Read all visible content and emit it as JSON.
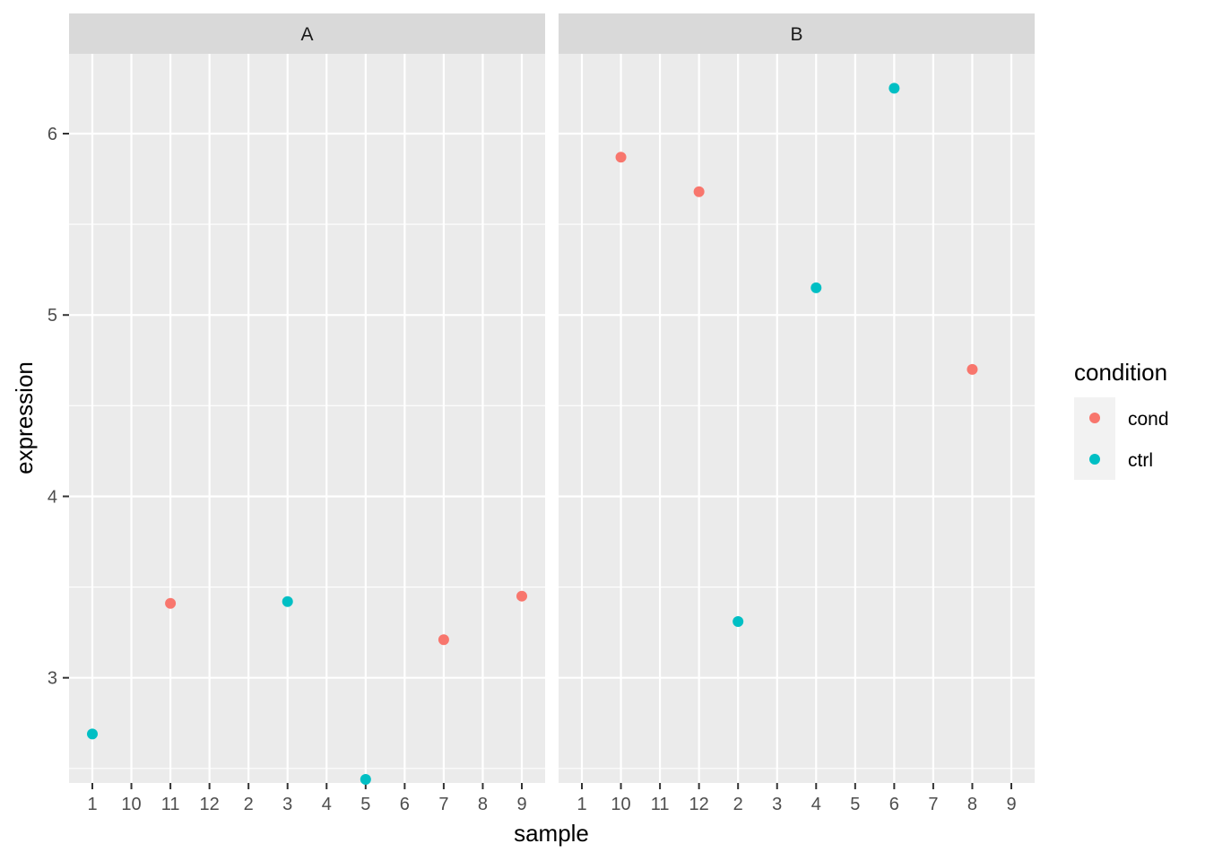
{
  "chart_data": {
    "type": "scatter",
    "xlabel": "sample",
    "ylabel": "expression",
    "categories": [
      "1",
      "10",
      "11",
      "12",
      "2",
      "3",
      "4",
      "5",
      "6",
      "7",
      "8",
      "9"
    ],
    "yticks": [
      3,
      4,
      5,
      6
    ],
    "ylim": [
      2.42,
      6.44
    ],
    "grid": true,
    "facets": [
      {
        "label": "A",
        "points": [
          {
            "sample": "1",
            "expression": 2.69,
            "condition": "ctrl"
          },
          {
            "sample": "11",
            "expression": 3.41,
            "condition": "cond"
          },
          {
            "sample": "3",
            "expression": 3.42,
            "condition": "ctrl"
          },
          {
            "sample": "5",
            "expression": 2.44,
            "condition": "ctrl"
          },
          {
            "sample": "7",
            "expression": 3.21,
            "condition": "cond"
          },
          {
            "sample": "9",
            "expression": 3.45,
            "condition": "cond"
          }
        ]
      },
      {
        "label": "B",
        "points": [
          {
            "sample": "10",
            "expression": 5.87,
            "condition": "cond"
          },
          {
            "sample": "12",
            "expression": 5.68,
            "condition": "cond"
          },
          {
            "sample": "2",
            "expression": 3.31,
            "condition": "ctrl"
          },
          {
            "sample": "4",
            "expression": 5.15,
            "condition": "ctrl"
          },
          {
            "sample": "6",
            "expression": 6.25,
            "condition": "ctrl"
          },
          {
            "sample": "8",
            "expression": 4.7,
            "condition": "cond"
          }
        ]
      }
    ],
    "legend": {
      "title": "condition",
      "placement": "right",
      "entries": [
        {
          "name": "cond",
          "color": "#F8766D"
        },
        {
          "name": "ctrl",
          "color": "#00BFC4"
        }
      ]
    },
    "colors": {
      "panel_bg": "#EBEBEB",
      "strip_bg": "#D9D9D9",
      "grid": "#FFFFFF"
    }
  }
}
